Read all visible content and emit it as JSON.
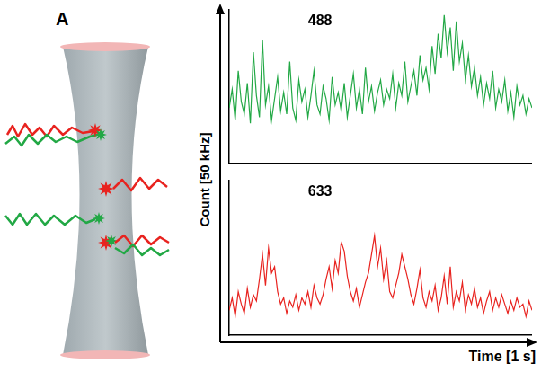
{
  "panel": "A",
  "chart_data": [
    {
      "type": "line",
      "title": "488",
      "ylabel": "Count [50 kHz]",
      "x": [
        0,
        0.01,
        0.02,
        0.03,
        0.04,
        0.05,
        0.06,
        0.07,
        0.08,
        0.09,
        0.1,
        0.11,
        0.12,
        0.13,
        0.14,
        0.15,
        0.16,
        0.17,
        0.18,
        0.19,
        0.2,
        0.21,
        0.22,
        0.23,
        0.24,
        0.25,
        0.26,
        0.27,
        0.28,
        0.29,
        0.3,
        0.31,
        0.32,
        0.33,
        0.34,
        0.35,
        0.36,
        0.37,
        0.38,
        0.39,
        0.4,
        0.41,
        0.42,
        0.43,
        0.44,
        0.45,
        0.46,
        0.47,
        0.48,
        0.49,
        0.5,
        0.51,
        0.52,
        0.53,
        0.54,
        0.55,
        0.56,
        0.57,
        0.58,
        0.59,
        0.6,
        0.61,
        0.62,
        0.63,
        0.64,
        0.65,
        0.66,
        0.67,
        0.68,
        0.69,
        0.7,
        0.71,
        0.72,
        0.73,
        0.74,
        0.75,
        0.76,
        0.77,
        0.78,
        0.79,
        0.8,
        0.81,
        0.82,
        0.83,
        0.84,
        0.85,
        0.86,
        0.87,
        0.88,
        0.89,
        0.9,
        0.91,
        0.92,
        0.93,
        0.94,
        0.95,
        0.96,
        0.97,
        0.98,
        0.99,
        1
      ],
      "series": [
        {
          "color": "#22a845",
          "values": [
            18,
            24,
            14,
            30,
            20,
            16,
            26,
            13,
            36,
            22,
            15,
            40,
            19,
            25,
            14,
            21,
            28,
            17,
            23,
            16,
            33,
            18,
            14,
            27,
            20,
            24,
            15,
            22,
            30,
            19,
            16,
            25,
            21,
            14,
            28,
            19,
            23,
            17,
            26,
            15,
            22,
            29,
            18,
            24,
            16,
            31,
            20,
            25,
            17,
            23,
            27,
            19,
            24,
            21,
            29,
            18,
            26,
            22,
            33,
            20,
            25,
            30,
            22,
            35,
            27,
            31,
            24,
            38,
            29,
            42,
            34,
            48,
            36,
            44,
            30,
            46,
            33,
            39,
            27,
            35,
            25,
            31,
            22,
            28,
            19,
            26,
            21,
            30,
            18,
            24,
            20,
            27,
            17,
            23,
            15,
            25,
            19,
            22,
            16,
            21,
            18
          ]
        }
      ],
      "xlim": [
        0,
        1
      ],
      "ylim": [
        0,
        50
      ],
      "grid": false,
      "tick_labels": false
    },
    {
      "type": "line",
      "title": "633",
      "xlabel": "Time [1 s]",
      "x": [
        0,
        0.01,
        0.02,
        0.03,
        0.04,
        0.05,
        0.06,
        0.07,
        0.08,
        0.09,
        0.1,
        0.11,
        0.12,
        0.13,
        0.14,
        0.15,
        0.16,
        0.17,
        0.18,
        0.19,
        0.2,
        0.21,
        0.22,
        0.23,
        0.24,
        0.25,
        0.26,
        0.27,
        0.28,
        0.29,
        0.3,
        0.31,
        0.32,
        0.33,
        0.34,
        0.35,
        0.36,
        0.37,
        0.38,
        0.39,
        0.4,
        0.41,
        0.42,
        0.43,
        0.44,
        0.45,
        0.46,
        0.47,
        0.48,
        0.49,
        0.5,
        0.51,
        0.52,
        0.53,
        0.54,
        0.55,
        0.56,
        0.57,
        0.58,
        0.59,
        0.6,
        0.61,
        0.62,
        0.63,
        0.64,
        0.65,
        0.66,
        0.67,
        0.68,
        0.69,
        0.7,
        0.71,
        0.72,
        0.73,
        0.74,
        0.75,
        0.76,
        0.77,
        0.78,
        0.79,
        0.8,
        0.81,
        0.82,
        0.83,
        0.84,
        0.85,
        0.86,
        0.87,
        0.88,
        0.89,
        0.9,
        0.91,
        0.92,
        0.93,
        0.94,
        0.95,
        0.96,
        0.97,
        0.98,
        0.99,
        1
      ],
      "series": [
        {
          "color": "#e8231f",
          "values": [
            8,
            12,
            6,
            14,
            10,
            7,
            15,
            9,
            13,
            11,
            18,
            26,
            16,
            28,
            20,
            22,
            14,
            10,
            12,
            7,
            11,
            9,
            13,
            8,
            12,
            10,
            14,
            9,
            16,
            12,
            10,
            13,
            18,
            22,
            15,
            24,
            20,
            30,
            27,
            19,
            14,
            11,
            15,
            9,
            13,
            17,
            20,
            26,
            32,
            22,
            28,
            18,
            24,
            14,
            12,
            16,
            20,
            26,
            22,
            18,
            13,
            10,
            15,
            21,
            12,
            9,
            14,
            11,
            16,
            8,
            12,
            19,
            10,
            22,
            9,
            14,
            11,
            17,
            8,
            13,
            10,
            15,
            9,
            12,
            7,
            11,
            14,
            8,
            12,
            9,
            13,
            10,
            7,
            11,
            8,
            12,
            9,
            10,
            6,
            11,
            8
          ]
        }
      ],
      "xlim": [
        0,
        1
      ],
      "ylim": [
        0,
        50
      ],
      "grid": false,
      "tick_labels": false
    }
  ]
}
